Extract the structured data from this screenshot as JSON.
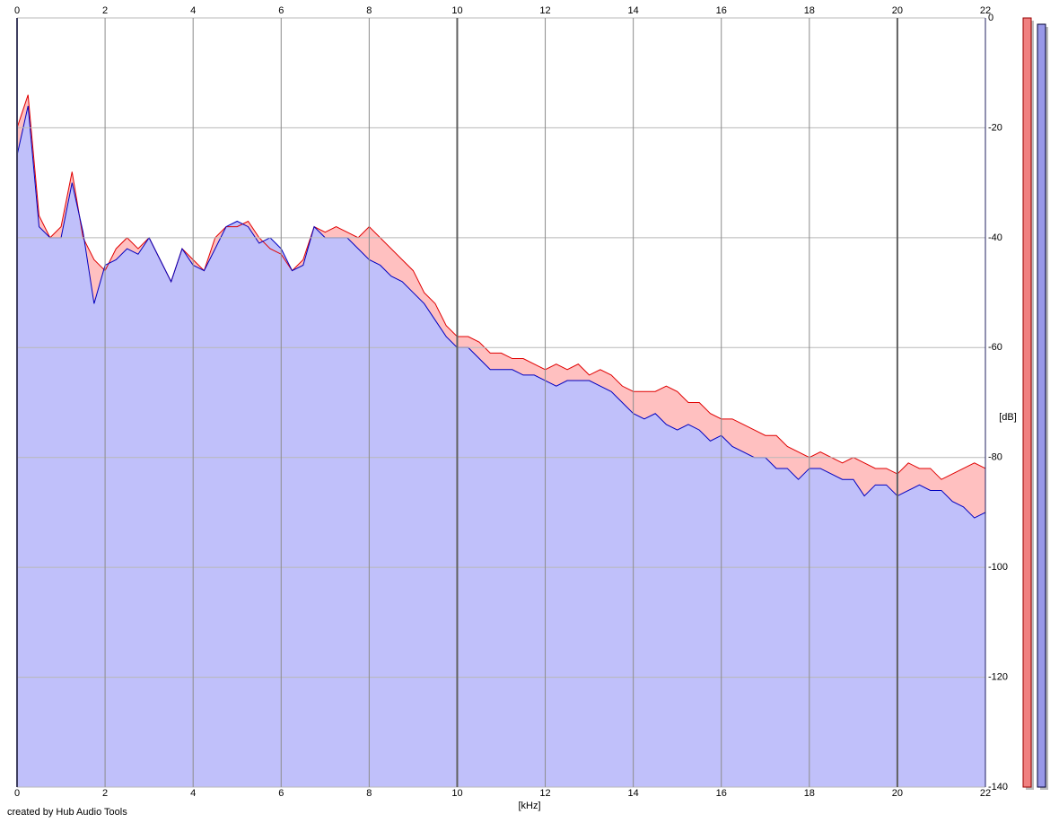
{
  "chart_data": {
    "type": "area",
    "xlabel": "[kHz]",
    "ylabel": "[dB]",
    "footer": "created by Hub Audio Tools",
    "xlim": [
      0,
      22
    ],
    "xticks": [
      0,
      2,
      4,
      6,
      8,
      10,
      12,
      14,
      16,
      18,
      20,
      22
    ],
    "ylim": [
      -140,
      0
    ],
    "yticks": [
      0,
      -20,
      -40,
      -60,
      -80,
      -100,
      -120,
      -140
    ],
    "grid": true,
    "x": [
      0,
      0.25,
      0.5,
      0.75,
      1,
      1.25,
      1.5,
      1.75,
      2,
      2.25,
      2.5,
      2.75,
      3,
      3.25,
      3.5,
      3.75,
      4,
      4.25,
      4.5,
      4.75,
      5,
      5.25,
      5.5,
      5.75,
      6,
      6.25,
      6.5,
      6.75,
      7,
      7.25,
      7.5,
      7.75,
      8,
      8.25,
      8.5,
      8.75,
      9,
      9.25,
      9.5,
      9.75,
      10,
      10.25,
      10.5,
      10.75,
      11,
      11.25,
      11.5,
      11.75,
      12,
      12.25,
      12.5,
      12.75,
      13,
      13.25,
      13.5,
      13.75,
      14,
      14.25,
      14.5,
      14.75,
      15,
      15.25,
      15.5,
      15.75,
      16,
      16.25,
      16.5,
      16.75,
      17,
      17.25,
      17.5,
      17.75,
      18,
      18.25,
      18.5,
      18.75,
      19,
      19.25,
      19.5,
      19.75,
      20,
      20.25,
      20.5,
      20.75,
      21,
      21.25,
      21.5,
      21.75,
      22
    ],
    "series": [
      {
        "color": "#e00000",
        "fill": "#ffc0c0",
        "values": [
          -20,
          -14,
          -36,
          -40,
          -38,
          -28,
          -40,
          -44,
          -46,
          -42,
          -40,
          -42,
          -40,
          -44,
          -48,
          -42,
          -44,
          -46,
          -40,
          -38,
          -38,
          -37,
          -40,
          -42,
          -43,
          -46,
          -44,
          -38,
          -39,
          -38,
          -39,
          -40,
          -38,
          -40,
          -42,
          -44,
          -46,
          -50,
          -52,
          -56,
          -58,
          -58,
          -59,
          -61,
          -61,
          -62,
          -62,
          -63,
          -64,
          -63,
          -64,
          -63,
          -65,
          -64,
          -65,
          -67,
          -68,
          -68,
          -68,
          -67,
          -68,
          -70,
          -70,
          -72,
          -73,
          -73,
          -74,
          -75,
          -76,
          -76,
          -78,
          -79,
          -80,
          -79,
          -80,
          -81,
          -80,
          -81,
          -82,
          -82,
          -83,
          -81,
          -82,
          -82,
          -84,
          -83,
          -82,
          -81,
          -82
        ]
      },
      {
        "color": "#0000c0",
        "fill": "#c0c0fa",
        "values": [
          -25,
          -16,
          -38,
          -40,
          -40,
          -30,
          -39,
          -52,
          -45,
          -44,
          -42,
          -43,
          -40,
          -44,
          -48,
          -42,
          -45,
          -46,
          -42,
          -38,
          -37,
          -38,
          -41,
          -40,
          -42,
          -46,
          -45,
          -38,
          -40,
          -40,
          -40,
          -42,
          -44,
          -45,
          -47,
          -48,
          -50,
          -52,
          -55,
          -58,
          -60,
          -60,
          -62,
          -64,
          -64,
          -64,
          -65,
          -65,
          -66,
          -67,
          -66,
          -66,
          -66,
          -67,
          -68,
          -70,
          -72,
          -73,
          -72,
          -74,
          -75,
          -74,
          -75,
          -77,
          -76,
          -78,
          -79,
          -80,
          -80,
          -82,
          -82,
          -84,
          -82,
          -82,
          -83,
          -84,
          -84,
          -87,
          -85,
          -85,
          -87,
          -86,
          -85,
          -86,
          -86,
          -88,
          -89,
          -91,
          -90
        ]
      }
    ]
  }
}
